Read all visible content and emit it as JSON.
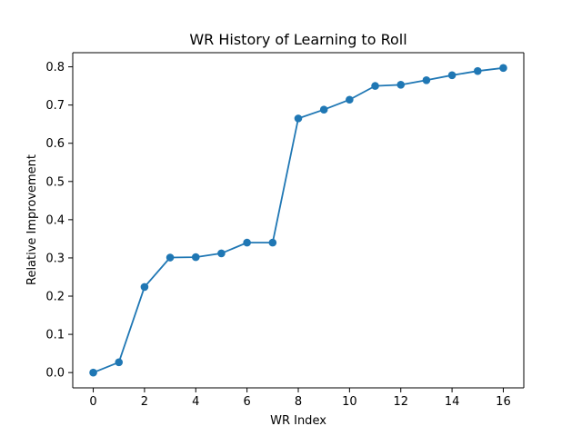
{
  "chart_data": {
    "type": "line",
    "title": "WR History of Learning to Roll",
    "xlabel": "WR Index",
    "ylabel": "Relative Improvement",
    "x": [
      0,
      1,
      2,
      3,
      4,
      5,
      6,
      7,
      8,
      9,
      10,
      11,
      12,
      13,
      14,
      15,
      16
    ],
    "series": [
      {
        "values": [
          0.0,
          0.027,
          0.224,
          0.301,
          0.302,
          0.312,
          0.34,
          0.34,
          0.665,
          0.688,
          0.714,
          0.75,
          0.753,
          0.765,
          0.778,
          0.789,
          0.797
        ],
        "color": "#1f77b4",
        "marker": "circle"
      }
    ],
    "xlim": [
      -0.8,
      16.8
    ],
    "ylim": [
      -0.04,
      0.837
    ],
    "xticks": [
      0,
      2,
      4,
      6,
      8,
      10,
      12,
      14,
      16
    ],
    "xtick_labels": [
      "0",
      "2",
      "4",
      "6",
      "8",
      "10",
      "12",
      "14",
      "16"
    ],
    "yticks": [
      0.0,
      0.1,
      0.2,
      0.3,
      0.4,
      0.5,
      0.6,
      0.7,
      0.8
    ],
    "ytick_labels": [
      "0.0",
      "0.1",
      "0.2",
      "0.3",
      "0.4",
      "0.5",
      "0.6",
      "0.7",
      "0.8"
    ],
    "grid": false
  }
}
